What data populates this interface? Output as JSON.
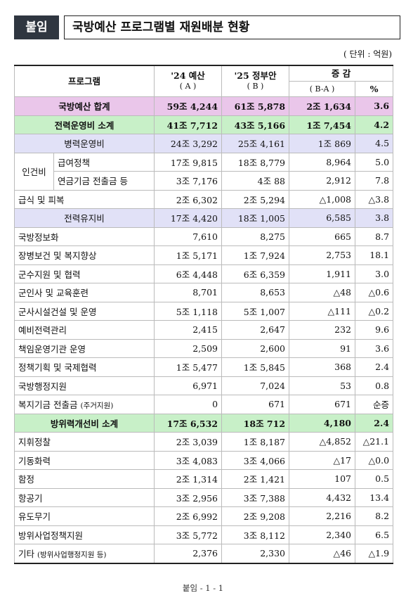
{
  "header": {
    "tag": "붙임",
    "title": "국방예산 프로그램별 재원배분 현황"
  },
  "unit": "( 단위 : 억원)",
  "columns": {
    "program": "프로그램",
    "y24": "'24 예산",
    "y24_sub": "( A )",
    "y25": "'25 정부안",
    "y25_sub": "( B )",
    "diff": "증 감",
    "diff_sub": "( B-A )",
    "pct": "%"
  },
  "rows": [
    {
      "name": "국방예산 합계",
      "a": "59조 4,244",
      "b": "61조 5,878",
      "d": "2조 1,634",
      "p": "3.6"
    },
    {
      "name": "전력운영비 소계",
      "a": "41조 7,712",
      "b": "43조 5,166",
      "d": "1조 7,454",
      "p": "4.2"
    },
    {
      "name": "병력운영비",
      "a": "24조 3,292",
      "b": "25조 4,161",
      "d": "1조 869",
      "p": "4.5"
    },
    {
      "group": "인건비",
      "name": "급여정책",
      "a": "17조 9,815",
      "b": "18조 8,779",
      "d": "8,964",
      "p": "5.0"
    },
    {
      "name": "연금기금 전출금 등",
      "a": "3조 7,176",
      "b": "4조 88",
      "d": "2,912",
      "p": "7.8"
    },
    {
      "name": "급식 및 피복",
      "a": "2조 6,302",
      "b": "2조 5,294",
      "d": "△1,008",
      "p": "△3.8"
    },
    {
      "name": "전력유지비",
      "a": "17조 4,420",
      "b": "18조 1,005",
      "d": "6,585",
      "p": "3.8"
    },
    {
      "name": "국방정보화",
      "a": "7,610",
      "b": "8,275",
      "d": "665",
      "p": "8.7"
    },
    {
      "name": "장병보건 및 복지향상",
      "a": "1조 5,171",
      "b": "1조 7,924",
      "d": "2,753",
      "p": "18.1"
    },
    {
      "name": "군수지원 및 협력",
      "a": "6조 4,448",
      "b": "6조 6,359",
      "d": "1,911",
      "p": "3.0"
    },
    {
      "name": "군인사 및 교육훈련",
      "a": "8,701",
      "b": "8,653",
      "d": "△48",
      "p": "△0.6"
    },
    {
      "name": "군사시설건설 및 운영",
      "a": "5조 1,118",
      "b": "5조 1,007",
      "d": "△111",
      "p": "△0.2"
    },
    {
      "name": "예비전력관리",
      "a": "2,415",
      "b": "2,647",
      "d": "232",
      "p": "9.6"
    },
    {
      "name": "책임운영기관 운영",
      "a": "2,509",
      "b": "2,600",
      "d": "91",
      "p": "3.6"
    },
    {
      "name": "정책기획 및 국제협력",
      "a": "1조 5,477",
      "b": "1조 5,845",
      "d": "368",
      "p": "2.4"
    },
    {
      "name": "국방행정지원",
      "a": "6,971",
      "b": "7,024",
      "d": "53",
      "p": "0.8"
    },
    {
      "name": "복지기금 전출금",
      "note": "(주거지원)",
      "a": "0",
      "b": "671",
      "d": "671",
      "p": "순증"
    },
    {
      "name": "방위력개선비 소계",
      "a": "17조 6,532",
      "b": "18조 712",
      "d": "4,180",
      "p": "2.4"
    },
    {
      "name": "지휘정찰",
      "a": "2조 3,039",
      "b": "1조 8,187",
      "d": "△4,852",
      "p": "△21.1"
    },
    {
      "name": "기동화력",
      "a": "3조 4,083",
      "b": "3조 4,066",
      "d": "△17",
      "p": "△0.0"
    },
    {
      "name": "함정",
      "a": "2조 1,314",
      "b": "2조 1,421",
      "d": "107",
      "p": "0.5"
    },
    {
      "name": "항공기",
      "a": "3조 2,956",
      "b": "3조 7,388",
      "d": "4,432",
      "p": "13.4"
    },
    {
      "name": "유도무기",
      "a": "2조 6,992",
      "b": "2조 9,208",
      "d": "2,216",
      "p": "8.2"
    },
    {
      "name": "방위사업정책지원",
      "a": "3조 5,772",
      "b": "3조 8,112",
      "d": "2,340",
      "p": "6.5"
    },
    {
      "name": "기타",
      "note": "(방위사업행정지원 등)",
      "a": "2,376",
      "b": "2,330",
      "d": "△46",
      "p": "△1.9"
    }
  ],
  "footer": "붙임 - 1 - 1"
}
